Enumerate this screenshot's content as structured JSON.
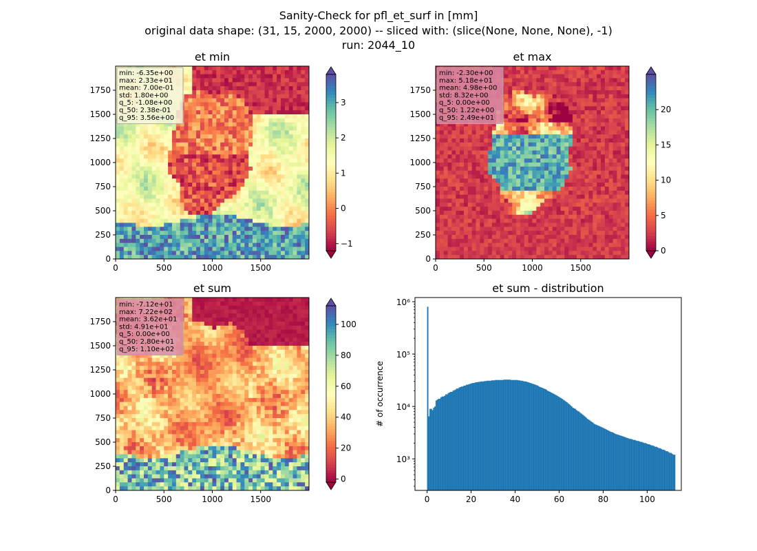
{
  "figure": {
    "title_lines": [
      "Sanity-Check for pfl_et_surf in [mm]",
      "original data shape: (31, 15, 2000, 2000) -- sliced with: (slice(None, None, None), -1)",
      "run: 2044_10"
    ]
  },
  "colors": {
    "hist_bar": "#1f77b4",
    "spectral": [
      "#9e0142",
      "#d53e4f",
      "#f46d43",
      "#fdae61",
      "#fee08b",
      "#ffffbf",
      "#e6f598",
      "#abdda4",
      "#66c2a5",
      "#3288bd",
      "#5e4fa2"
    ]
  },
  "chart_data": [
    {
      "type": "heatmap",
      "title": "et min",
      "colormap": "Spectral",
      "xlim": [
        0,
        2000
      ],
      "ylim": [
        0,
        2000
      ],
      "x_ticks": [
        0,
        500,
        1000,
        1500
      ],
      "y_ticks": [
        0,
        250,
        500,
        750,
        1000,
        1250,
        1500,
        1750
      ],
      "colorbar": {
        "min": -1.2,
        "max": 3.8,
        "ticks": [
          -1,
          0,
          1,
          2,
          3
        ],
        "extend": "both"
      },
      "stats": [
        "min: -6.35e+00",
        "max: 2.33e+01",
        "mean: 7.00e-01",
        "std: 1.80e+00",
        "q_5: -1.08e+00",
        "q_50: 2.38e-01",
        "q_95: 3.56e+00"
      ],
      "stats_box_color": "#f5f5dc"
    },
    {
      "type": "heatmap",
      "title": "et max",
      "colormap": "Spectral",
      "xlim": [
        0,
        2000
      ],
      "ylim": [
        0,
        2000
      ],
      "x_ticks": [
        0,
        500,
        1000,
        1500
      ],
      "y_ticks": [
        0,
        250,
        500,
        750,
        1000,
        1250,
        1500,
        1750
      ],
      "colorbar": {
        "min": 0,
        "max": 25,
        "ticks": [
          0,
          5,
          10,
          15,
          20
        ],
        "extend": "both"
      },
      "stats": [
        "min: -2.30e+00",
        "max: 5.18e+01",
        "mean: 4.98e+00",
        "std: 8.32e+00",
        "q_5: 0.00e+00",
        "q_50: 1.22e+00",
        "q_95: 2.49e+01"
      ],
      "stats_box_color": "#d98aa6"
    },
    {
      "type": "heatmap",
      "title": "et sum",
      "colormap": "Spectral",
      "xlim": [
        0,
        2000
      ],
      "ylim": [
        0,
        2000
      ],
      "x_ticks": [
        0,
        500,
        1000,
        1500
      ],
      "y_ticks": [
        0,
        250,
        500,
        750,
        1000,
        1250,
        1500,
        1750
      ],
      "colorbar": {
        "min": -2,
        "max": 112,
        "ticks": [
          0,
          20,
          40,
          60,
          80,
          100
        ],
        "extend": "both"
      },
      "stats": [
        "min: -7.12e+01",
        "max: 7.22e+02",
        "mean: 3.62e+01",
        "std: 4.91e+01",
        "q_5: 0.00e+00",
        "q_50: 2.80e+01",
        "q_95: 1.10e+02"
      ],
      "stats_box_color": "#d98aa6"
    },
    {
      "type": "bar",
      "title": "et sum - distribution",
      "xlabel": "",
      "ylabel": "# of occurrence",
      "y_scale": "log",
      "xlim": [
        -5.5,
        115.5
      ],
      "ylim": [
        250,
        1200000
      ],
      "x_ticks": [
        0,
        20,
        40,
        60,
        80,
        100
      ],
      "y_ticks": [
        {
          "value": 1000,
          "label": "10³"
        },
        {
          "value": 10000,
          "label": "10⁴"
        },
        {
          "value": 100000,
          "label": "10⁵"
        },
        {
          "value": 1000000,
          "label": "10⁶"
        }
      ],
      "bin_start": 0,
      "bin_width": 0.55,
      "counts": [
        800000,
        6500,
        9000,
        9000,
        8500,
        9500,
        10000,
        13000,
        13500,
        14000,
        14000,
        15000,
        15500,
        15500,
        16000,
        17000,
        17000,
        18000,
        18500,
        19000,
        19000,
        20000,
        20500,
        21000,
        22000,
        22000,
        23000,
        23500,
        24000,
        24000,
        25000,
        25000,
        26000,
        26000,
        26500,
        27000,
        27500,
        28000,
        28000,
        28500,
        29000,
        29000,
        29500,
        29500,
        30000,
        30000,
        30000,
        30500,
        30500,
        31000,
        31000,
        31000,
        31000,
        31500,
        31500,
        31500,
        32000,
        32000,
        32000,
        32000,
        32000,
        32000,
        32000,
        32500,
        32500,
        32500,
        32500,
        32500,
        32500,
        32000,
        32000,
        32000,
        32000,
        32000,
        32000,
        31500,
        31500,
        31000,
        31000,
        30500,
        30000,
        30000,
        29500,
        29000,
        28500,
        28000,
        27500,
        27000,
        26500,
        26000,
        25500,
        25000,
        24000,
        23500,
        23000,
        22500,
        22000,
        21500,
        21000,
        20000,
        19500,
        19000,
        18500,
        18000,
        17500,
        17000,
        16500,
        16000,
        15500,
        15000,
        14500,
        14000,
        13500,
        13000,
        12500,
        12000,
        11500,
        11000,
        10500,
        10000,
        9500,
        9200,
        9000,
        8500,
        8200,
        8000,
        7600,
        7300,
        7000,
        6700,
        6400,
        6100,
        5800,
        5600,
        5400,
        5200,
        5000,
        4800,
        4600,
        4500,
        4400,
        4300,
        4200,
        4100,
        4000,
        3900,
        3800,
        3700,
        3600,
        3500,
        3400,
        3300,
        3250,
        3200,
        3100,
        3000,
        2950,
        2900,
        2850,
        2800,
        2750,
        2700,
        2650,
        2600,
        2550,
        2500,
        2450,
        2400,
        2400,
        2350,
        2300,
        2300,
        2250,
        2200,
        2200,
        2150,
        2100,
        2100,
        2050,
        2000,
        2000,
        1950,
        1900,
        1900,
        1850,
        1800,
        1800,
        1750,
        1700,
        1700,
        1650,
        1600,
        1600,
        1550,
        1500,
        1500,
        1450,
        1400,
        1400,
        1350,
        1300,
        1300,
        1250,
        1200,
        1200
      ]
    }
  ]
}
